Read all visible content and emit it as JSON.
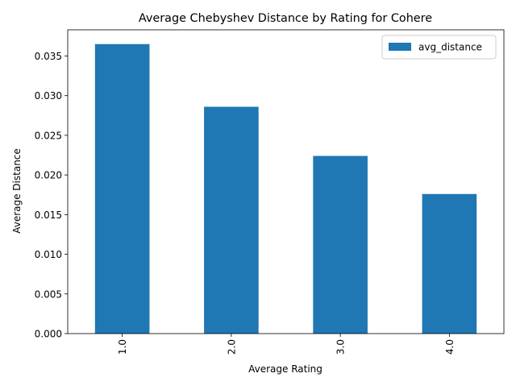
{
  "chart_data": {
    "type": "bar",
    "title": "Average Chebyshev Distance by Rating for Cohere",
    "xlabel": "Average Rating",
    "ylabel": "Average Distance",
    "categories": [
      "1.0",
      "2.0",
      "3.0",
      "4.0"
    ],
    "series": [
      {
        "name": "avg_distance",
        "values": [
          0.0365,
          0.0286,
          0.0224,
          0.0176
        ],
        "color": "#1f77b4"
      }
    ],
    "ylim": [
      0,
      0.0383
    ],
    "yticks": [
      "0.000",
      "0.005",
      "0.010",
      "0.015",
      "0.020",
      "0.025",
      "0.030",
      "0.035"
    ],
    "grid": false,
    "legend_position": "top-right"
  }
}
